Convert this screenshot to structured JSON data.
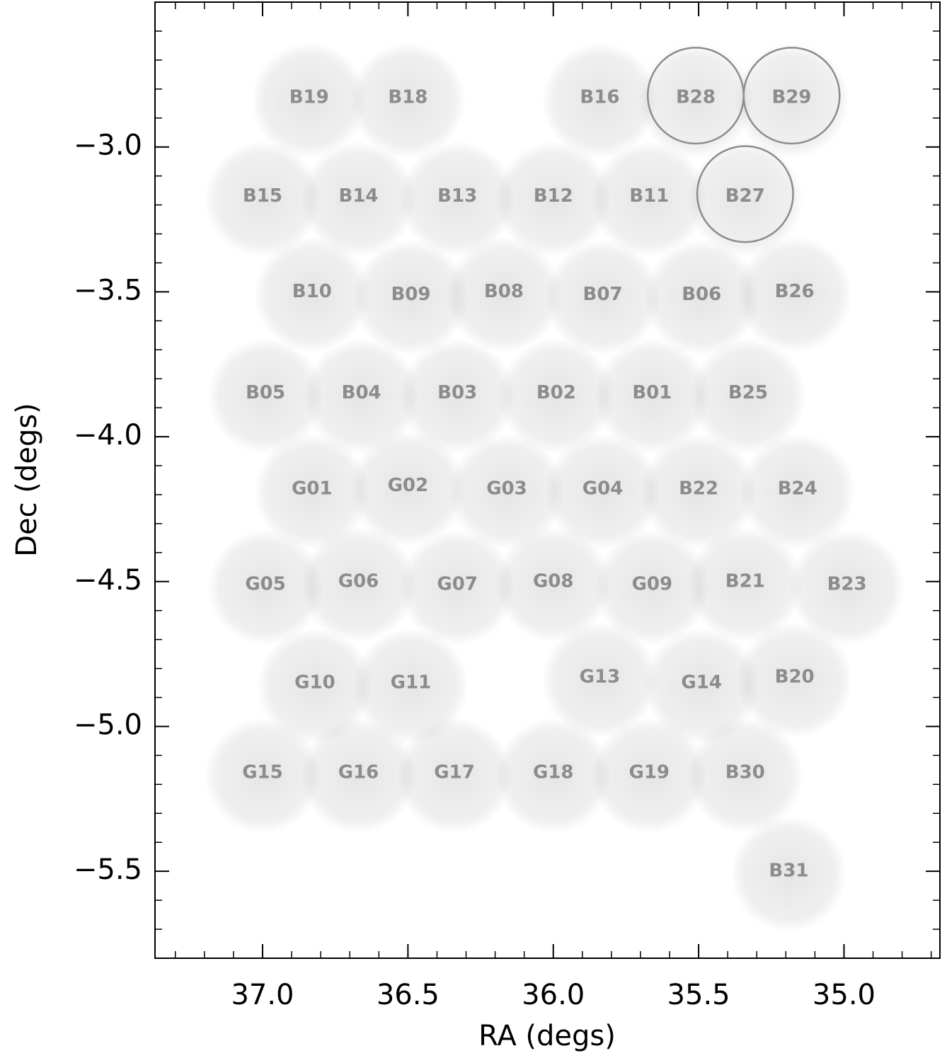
{
  "chart_data": {
    "type": "pointing-map",
    "x_label": "RA (degs)",
    "y_label": "Dec (degs)",
    "xlim": [
      37.37,
      34.67
    ],
    "ylim": [
      -5.8,
      -2.5
    ],
    "xticks": [
      {
        "value": 37.0,
        "label": "37.0"
      },
      {
        "value": 36.5,
        "label": "36.5"
      },
      {
        "value": 36.0,
        "label": "36.0"
      },
      {
        "value": 35.5,
        "label": "35.5"
      },
      {
        "value": 35.0,
        "label": "35.0"
      }
    ],
    "yticks": [
      {
        "value": -3.0,
        "label": "−3.0"
      },
      {
        "value": -3.5,
        "label": "−3.5"
      },
      {
        "value": -4.0,
        "label": "−4.0"
      },
      {
        "value": -4.5,
        "label": "−4.5"
      },
      {
        "value": -5.0,
        "label": "−5.0"
      },
      {
        "value": -5.5,
        "label": "−5.5"
      }
    ],
    "label_color": "#8c8c8c",
    "circle_color": "#8c8c8c",
    "circle_radius": 0.165,
    "points": [
      {
        "label": "B19",
        "ra": 36.84,
        "dec": -2.83
      },
      {
        "label": "B18",
        "ra": 36.5,
        "dec": -2.83
      },
      {
        "label": "B16",
        "ra": 35.84,
        "dec": -2.83
      },
      {
        "label": "B28",
        "ra": 35.51,
        "dec": -2.83,
        "circled": true
      },
      {
        "label": "B29",
        "ra": 35.18,
        "dec": -2.83,
        "circled": true
      },
      {
        "label": "B15",
        "ra": 37.0,
        "dec": -3.17
      },
      {
        "label": "B14",
        "ra": 36.67,
        "dec": -3.17
      },
      {
        "label": "B13",
        "ra": 36.33,
        "dec": -3.17
      },
      {
        "label": "B12",
        "ra": 36.0,
        "dec": -3.17
      },
      {
        "label": "B11",
        "ra": 35.67,
        "dec": -3.17
      },
      {
        "label": "B27",
        "ra": 35.34,
        "dec": -3.17,
        "circled": true
      },
      {
        "label": "B10",
        "ra": 36.83,
        "dec": -3.5
      },
      {
        "label": "B09",
        "ra": 36.49,
        "dec": -3.51
      },
      {
        "label": "B08",
        "ra": 36.17,
        "dec": -3.5
      },
      {
        "label": "B07",
        "ra": 35.83,
        "dec": -3.51
      },
      {
        "label": "B06",
        "ra": 35.49,
        "dec": -3.51
      },
      {
        "label": "B26",
        "ra": 35.17,
        "dec": -3.5
      },
      {
        "label": "B05",
        "ra": 36.99,
        "dec": -3.85
      },
      {
        "label": "B04",
        "ra": 36.66,
        "dec": -3.85
      },
      {
        "label": "B03",
        "ra": 36.33,
        "dec": -3.85
      },
      {
        "label": "B02",
        "ra": 35.99,
        "dec": -3.85
      },
      {
        "label": "B01",
        "ra": 35.66,
        "dec": -3.85
      },
      {
        "label": "B25",
        "ra": 35.33,
        "dec": -3.85
      },
      {
        "label": "G01",
        "ra": 36.83,
        "dec": -4.18
      },
      {
        "label": "G02",
        "ra": 36.5,
        "dec": -4.17
      },
      {
        "label": "G03",
        "ra": 36.16,
        "dec": -4.18
      },
      {
        "label": "G04",
        "ra": 35.83,
        "dec": -4.18
      },
      {
        "label": "B22",
        "ra": 35.5,
        "dec": -4.18
      },
      {
        "label": "B24",
        "ra": 35.16,
        "dec": -4.18
      },
      {
        "label": "G05",
        "ra": 36.99,
        "dec": -4.51
      },
      {
        "label": "G06",
        "ra": 36.67,
        "dec": -4.5
      },
      {
        "label": "G07",
        "ra": 36.33,
        "dec": -4.51
      },
      {
        "label": "G08",
        "ra": 36.0,
        "dec": -4.5
      },
      {
        "label": "G09",
        "ra": 35.66,
        "dec": -4.51
      },
      {
        "label": "B21",
        "ra": 35.34,
        "dec": -4.5
      },
      {
        "label": "B23",
        "ra": 34.99,
        "dec": -4.51
      },
      {
        "label": "G10",
        "ra": 36.82,
        "dec": -4.85
      },
      {
        "label": "G11",
        "ra": 36.49,
        "dec": -4.85
      },
      {
        "label": "G13",
        "ra": 35.84,
        "dec": -4.83
      },
      {
        "label": "G14",
        "ra": 35.49,
        "dec": -4.85
      },
      {
        "label": "B20",
        "ra": 35.17,
        "dec": -4.83
      },
      {
        "label": "G15",
        "ra": 37.0,
        "dec": -5.16
      },
      {
        "label": "G16",
        "ra": 36.67,
        "dec": -5.16
      },
      {
        "label": "G17",
        "ra": 36.34,
        "dec": -5.16
      },
      {
        "label": "G18",
        "ra": 36.0,
        "dec": -5.16
      },
      {
        "label": "G19",
        "ra": 35.67,
        "dec": -5.16
      },
      {
        "label": "B30",
        "ra": 35.34,
        "dec": -5.16
      },
      {
        "label": "B31",
        "ra": 35.19,
        "dec": -5.5
      }
    ]
  }
}
